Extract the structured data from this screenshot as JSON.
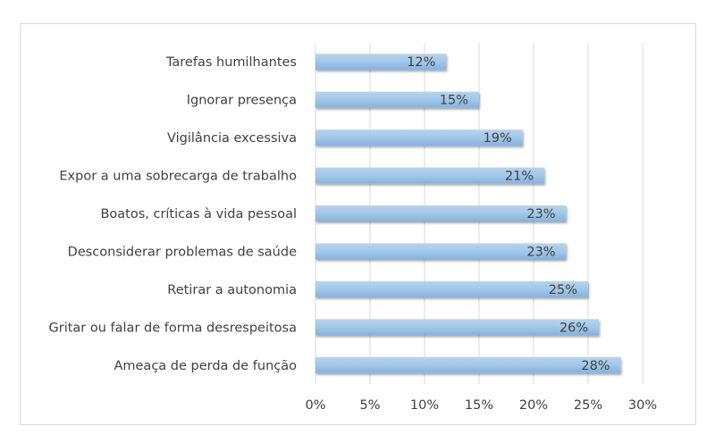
{
  "chart_data": {
    "type": "bar",
    "orientation": "horizontal",
    "categories": [
      "Tarefas humilhantes",
      "Ignorar presença",
      "Vigilância excessiva",
      "Expor a uma sobrecarga de trabalho",
      "Boatos, críticas à vida pessoal",
      "Desconsiderar problemas de saúde",
      "Retirar a autonomia",
      "Gritar ou falar de forma desrespeitosa",
      "Ameaça de perda de função"
    ],
    "values": [
      12,
      15,
      19,
      21,
      23,
      23,
      25,
      26,
      28
    ],
    "data_labels": [
      "12%",
      "15%",
      "19%",
      "21%",
      "23%",
      "23%",
      "25%",
      "26%",
      "28%"
    ],
    "xlim": [
      0,
      30
    ],
    "x_ticks": [
      0,
      5,
      10,
      15,
      20,
      25,
      30
    ],
    "x_tick_labels": [
      "0%",
      "5%",
      "10%",
      "15%",
      "20%",
      "25%",
      "30%"
    ],
    "grid": "vertical",
    "legend": "none",
    "bar_color": "#9dc3e6",
    "title": "",
    "xlabel": "",
    "ylabel": ""
  }
}
